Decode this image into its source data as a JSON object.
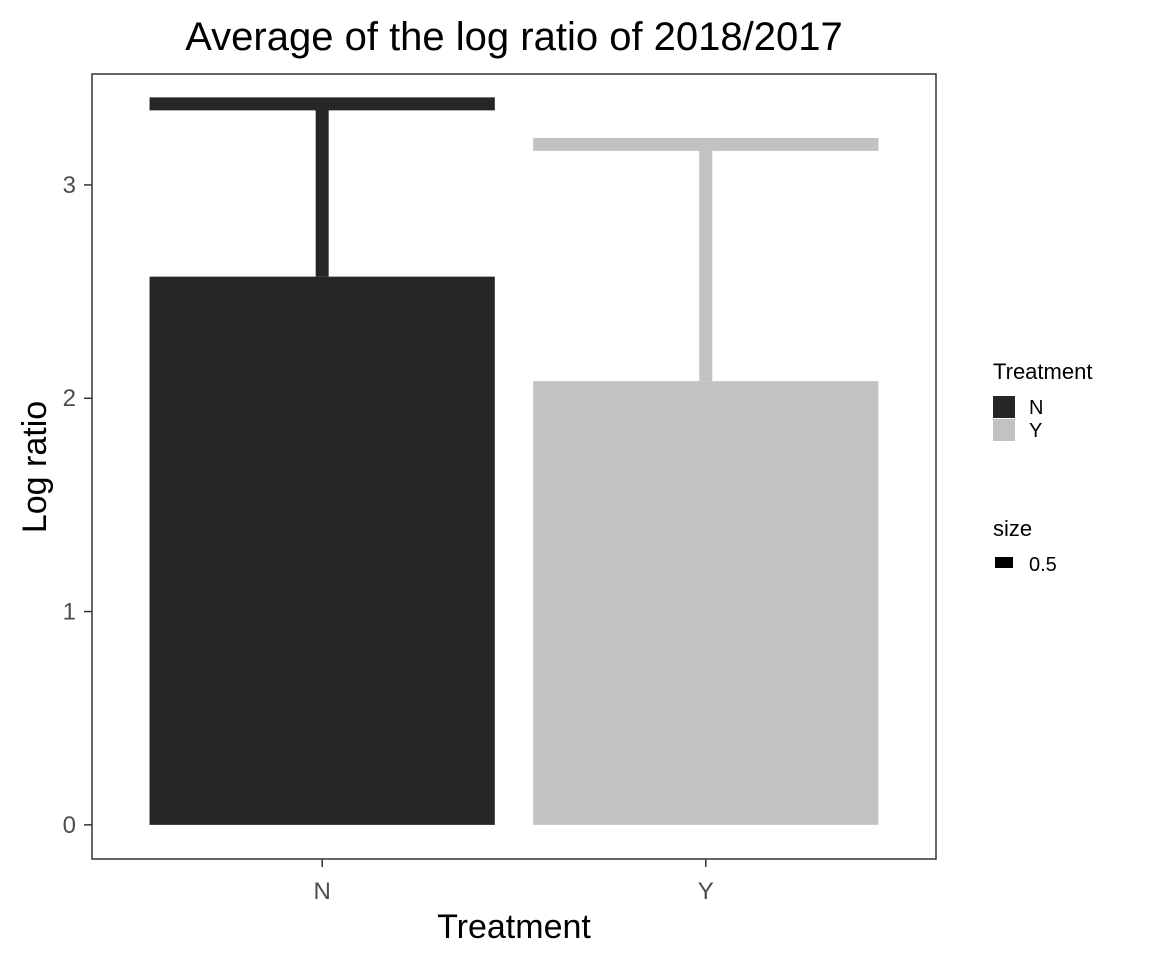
{
  "chart_data": {
    "type": "bar",
    "title": "Average of the log ratio of 2018/2017",
    "xlabel": "Treatment",
    "ylabel": "Log ratio",
    "categories": [
      "N",
      "Y"
    ],
    "values": [
      2.57,
      2.08
    ],
    "error_upper": [
      3.38,
      3.19
    ],
    "ylim": [
      -0.16,
      3.52
    ],
    "yticks": [
      "0",
      "1",
      "2",
      "3"
    ],
    "colors": [
      "#262626",
      "#c2c2c2"
    ],
    "grid": false,
    "legend": {
      "placement": "right",
      "groups": [
        {
          "title": "Treatment",
          "entries": [
            "N",
            "Y"
          ],
          "colors": [
            "#262626",
            "#c2c2c2"
          ]
        },
        {
          "title": "size",
          "entries": [
            "0.5"
          ],
          "colors": [
            "#000000"
          ]
        }
      ]
    }
  }
}
